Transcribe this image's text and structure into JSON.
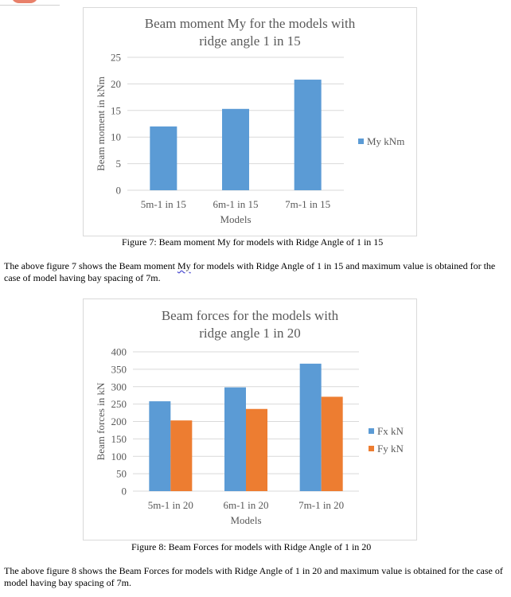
{
  "figure7": {
    "caption": "Figure 7:  Beam moment My for models with Ridge Angle of 1 in 15",
    "paragraph": {
      "before": "The above figure 7 shows the Beam moment ",
      "flagged": "My",
      "after": " for models with Ridge Angle of 1 in 15 and maximum value is obtained for the case of model having bay spacing of 7m."
    }
  },
  "figure8": {
    "caption": "Figure 8:  Beam Forces for models with Ridge Angle of 1 in 20",
    "paragraph": "The above figure 8 shows the Beam Forces for models with Ridge Angle of 1 in 20 and maximum value is obtained for the case of model having bay spacing of 7m."
  },
  "chart_data": [
    {
      "type": "bar",
      "title_lines": [
        "Beam moment My for the models with",
        "ridge angle  1 in 15"
      ],
      "categories": [
        "5m-1 in 15",
        "6m-1 in 15",
        "7m-1 in 15"
      ],
      "series": [
        {
          "name": "My kNm",
          "values": [
            12,
            15.3,
            20.8
          ],
          "color": "#5b9bd5"
        }
      ],
      "xlabel": "Models",
      "ylabel": "Beam moment in kNm",
      "ylim": [
        0,
        25
      ],
      "yticks": [
        0,
        5,
        10,
        15,
        20,
        25
      ],
      "grid": true,
      "legend": "right"
    },
    {
      "type": "bar",
      "title_lines": [
        "Beam forces for the models with",
        "ridge angle  1 in 20"
      ],
      "categories": [
        "5m-1 in 20",
        "6m-1 in 20",
        "7m-1 in 20"
      ],
      "series": [
        {
          "name": "Fx kN",
          "values": [
            258,
            298,
            366
          ],
          "color": "#5b9bd5"
        },
        {
          "name": "Fy kN",
          "values": [
            203,
            236,
            271
          ],
          "color": "#ed7d31"
        }
      ],
      "xlabel": "Models",
      "ylabel": "Beam forces in kN",
      "ylim": [
        0,
        400
      ],
      "yticks": [
        0,
        50,
        100,
        150,
        200,
        250,
        300,
        350,
        400
      ],
      "grid": true,
      "legend": "right"
    }
  ]
}
